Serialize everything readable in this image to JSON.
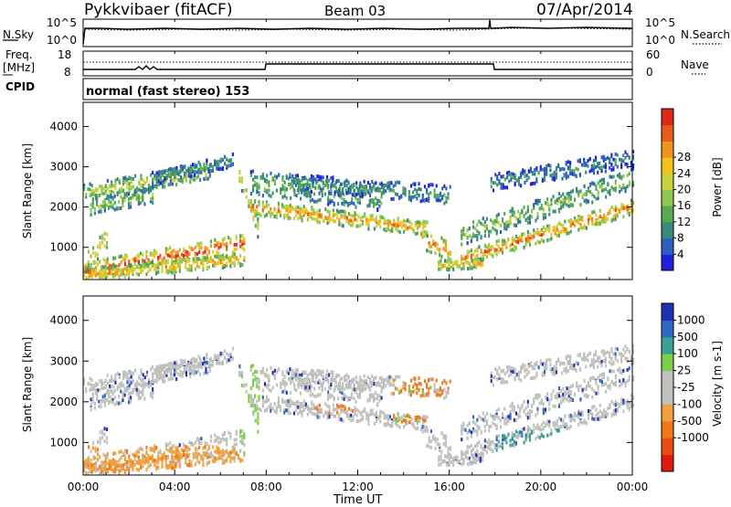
{
  "header": {
    "radar": "Pykkvibaer (fitACF)",
    "beam": "Beam 03",
    "date": "07/Apr/2014"
  },
  "panels": {
    "nsky": {
      "left_label": "N.Sky",
      "top_tick": "10^5",
      "bottom_tick": "10^0",
      "right_top_tick": "10^5",
      "right_bottom_tick": "10^0",
      "right_label": "N.Search"
    },
    "freq": {
      "left_label_1": "Freq.",
      "left_label_2": "[MHz]",
      "left_ticks": [
        "18",
        "8"
      ],
      "right_ticks": [
        "60",
        "0"
      ],
      "right_label": "Nave"
    },
    "cpid": {
      "label": "CPID",
      "mode": "normal (fast stereo) 153"
    }
  },
  "chart_data": [
    {
      "type": "heatmap",
      "name": "power",
      "ylabel": "Slant Range [km]",
      "yticks": [
        "1000",
        "2000",
        "3000",
        "4000"
      ],
      "ylim": [
        200,
        4600
      ],
      "xlim_hours": [
        0,
        24
      ],
      "colorbar": {
        "label": "Power [dB]",
        "ticks": [
          "4",
          "8",
          "12",
          "16",
          "20",
          "24",
          "28"
        ],
        "colors": [
          "#1f1fdc",
          "#2a5fc0",
          "#3a8a7a",
          "#58a850",
          "#8fc850",
          "#c8d23c",
          "#f2c218",
          "#f0941e",
          "#ea5a1c",
          "#e02818"
        ]
      }
    },
    {
      "type": "heatmap",
      "name": "velocity",
      "ylabel": "Slant Range [km]",
      "yticks": [
        "1000",
        "2000",
        "3000",
        "4000"
      ],
      "ylim": [
        200,
        4600
      ],
      "xlim_hours": [
        0,
        24
      ],
      "colorbar": {
        "label": "Velocity [m s-1]",
        "ticks": [
          "1000",
          "500",
          "100",
          "25",
          "-25",
          "-100",
          "-500",
          "-1000"
        ],
        "colors": [
          "#1f2fb0",
          "#2f67c2",
          "#3aa090",
          "#7cd048",
          "#c0c0bc",
          "#c0c0bc",
          "#f0a03c",
          "#f07818",
          "#ea4a14",
          "#e01a10"
        ]
      }
    }
  ],
  "xaxis": {
    "ticks": [
      "00:00",
      "04:00",
      "08:00",
      "12:00",
      "16:00",
      "20:00",
      "00:00"
    ],
    "label": "Time UT"
  }
}
